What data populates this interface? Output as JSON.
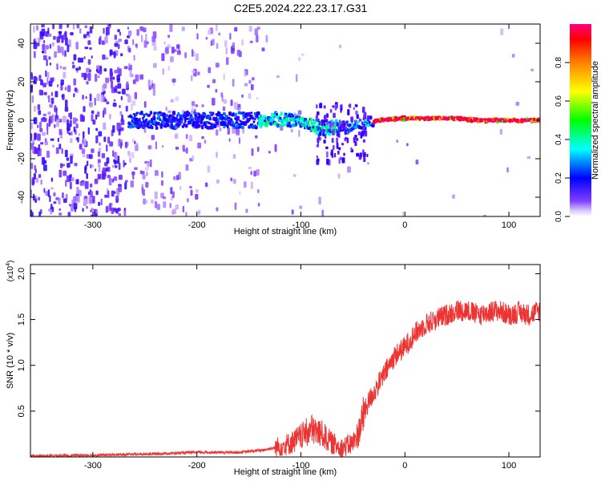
{
  "chart_data": [
    {
      "type": "heatmap",
      "title": "C2E5.2024.222.23.17.G31",
      "xlabel": "Height of straight line (km)",
      "ylabel": "Frequency (Hz)",
      "xlim": [
        -360,
        130
      ],
      "ylim": [
        -50,
        50
      ],
      "xticks": [
        -300,
        -200,
        -100,
        0,
        100
      ],
      "yticks": [
        -40,
        -20,
        0,
        20,
        40
      ],
      "grid": false,
      "colorbar": {
        "label": "Normalized spectral amplitude",
        "range": [
          0,
          1
        ],
        "ticks": [
          "0.0",
          "0.2",
          "0.4",
          "0.6",
          "0.8"
        ],
        "colormap": [
          "#ffffff",
          "#b080ff",
          "#6000ff",
          "#0000ff",
          "#00ffff",
          "#00ff00",
          "#ffff00",
          "#ff0000",
          "#ff0080"
        ]
      },
      "ridge": [
        {
          "x": -260,
          "y": 0
        },
        {
          "x": -200,
          "y": 0
        },
        {
          "x": -150,
          "y": 0
        },
        {
          "x": -120,
          "y": 0.5
        },
        {
          "x": -100,
          "y": 0
        },
        {
          "x": -80,
          "y": -4
        },
        {
          "x": -60,
          "y": -4
        },
        {
          "x": -40,
          "y": -2
        },
        {
          "x": -25,
          "y": 0
        },
        {
          "x": 0,
          "y": 1
        },
        {
          "x": 50,
          "y": 1
        },
        {
          "x": 70,
          "y": 0
        },
        {
          "x": 130,
          "y": 0
        }
      ]
    },
    {
      "type": "line",
      "xlabel": "Height of straight line (km)",
      "ylabel": "SNR (10 * v/v)",
      "yscale_label": "(x10",
      "yscale_exp": "4",
      "yscale_close": ")",
      "xlim": [
        -360,
        130
      ],
      "ylim": [
        0,
        2.1
      ],
      "xticks": [
        -300,
        -200,
        -100,
        0,
        100
      ],
      "yticks": [
        "0.5",
        "1.0",
        "1.5",
        "2.0"
      ],
      "grid": false,
      "series": [
        {
          "color": "#ee3333",
          "x": [
            -360,
            -300,
            -250,
            -200,
            -160,
            -140,
            -125,
            -110,
            -100,
            -90,
            -80,
            -70,
            -60,
            -50,
            -45,
            -40,
            -35,
            -30,
            -25,
            -20,
            -15,
            -10,
            -5,
            0,
            10,
            20,
            30,
            40,
            50,
            60,
            70,
            80,
            90,
            100,
            110,
            120,
            130
          ],
          "y": [
            0.01,
            0.02,
            0.03,
            0.05,
            0.05,
            0.07,
            0.1,
            0.15,
            0.22,
            0.3,
            0.25,
            0.15,
            0.1,
            0.15,
            0.25,
            0.45,
            0.6,
            0.7,
            0.8,
            0.9,
            1.0,
            1.1,
            1.15,
            1.2,
            1.35,
            1.45,
            1.5,
            1.55,
            1.6,
            1.6,
            1.55,
            1.58,
            1.6,
            1.55,
            1.58,
            1.55,
            1.6
          ]
        }
      ]
    }
  ]
}
